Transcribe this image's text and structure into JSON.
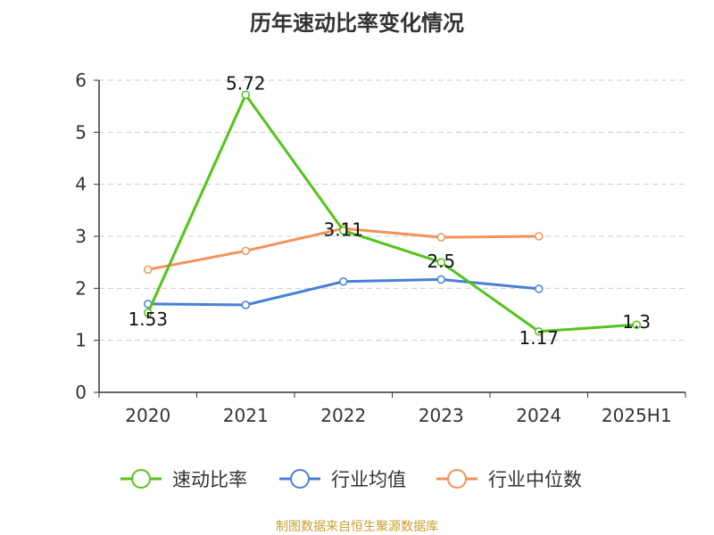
{
  "chart_data": {
    "type": "line",
    "title": "历年速动比率变化情况",
    "categories": [
      "2020",
      "2021",
      "2022",
      "2023",
      "2024",
      "2025H1"
    ],
    "ylim": [
      0,
      6
    ],
    "yticks": [
      "0",
      "1",
      "2",
      "3",
      "4",
      "5",
      "6"
    ],
    "grid": true,
    "legend_position": "bottom",
    "series": [
      {
        "name": "速动比率",
        "color": "#52c41a",
        "values": [
          1.53,
          5.72,
          3.11,
          2.5,
          1.17,
          1.3
        ],
        "labels": [
          "1.53",
          "5.72",
          "3.11",
          "2.5",
          "1.17",
          "1.3"
        ]
      },
      {
        "name": "行业均值",
        "color": "#4a7fd6",
        "values": [
          1.7,
          1.68,
          2.13,
          2.17,
          1.99,
          null
        ]
      },
      {
        "name": "行业中位数",
        "color": "#f5915a",
        "values": [
          2.36,
          2.72,
          3.15,
          2.98,
          3.0,
          null
        ]
      }
    ]
  },
  "source": "制图数据来自恒生聚源数据库"
}
